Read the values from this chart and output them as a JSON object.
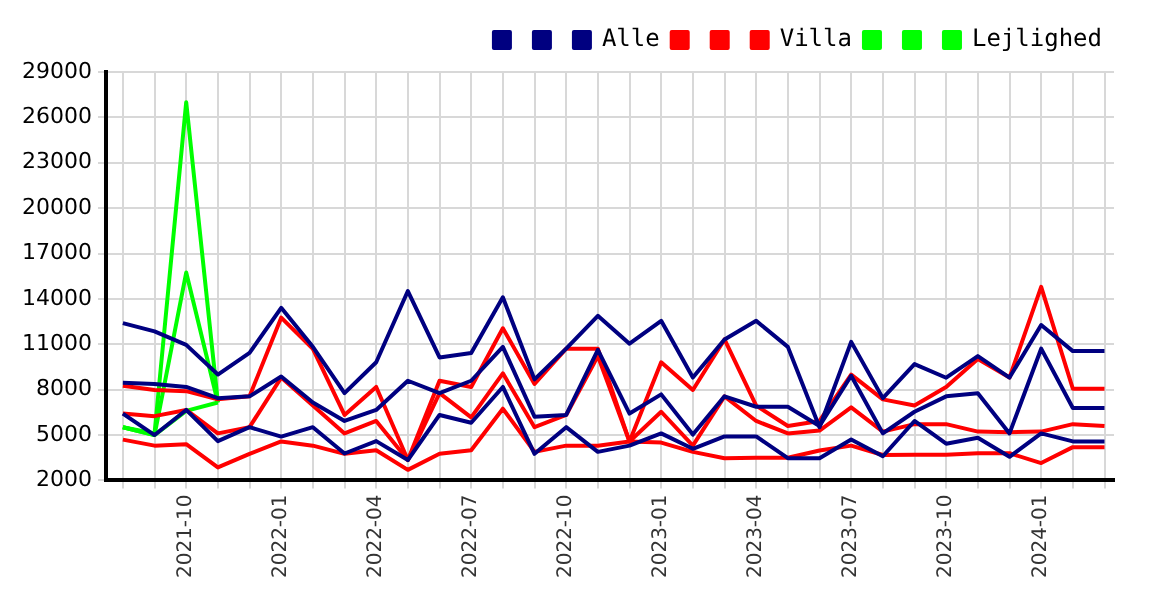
{
  "chart_data": {
    "type": "line",
    "x": [
      "2021-08",
      "2021-09",
      "2021-10",
      "2021-11",
      "2021-12",
      "2022-01",
      "2022-02",
      "2022-03",
      "2022-04",
      "2022-05",
      "2022-06",
      "2022-07",
      "2022-08",
      "2022-09",
      "2022-10",
      "2022-11",
      "2022-12",
      "2023-01",
      "2023-02",
      "2023-03",
      "2023-04",
      "2023-05",
      "2023-06",
      "2023-07",
      "2023-08",
      "2023-09",
      "2023-10",
      "2023-11",
      "2023-12",
      "2024-01",
      "2024-02",
      "2024-03"
    ],
    "series": [
      {
        "color": "#000080",
        "values": [
          6420,
          5000,
          6660,
          4600,
          5520,
          4900,
          5520,
          3780,
          4600,
          3350,
          6330,
          5810,
          8180,
          3760,
          5520,
          3890,
          4300,
          5110,
          4090,
          4910,
          4910,
          3470,
          3470,
          4700,
          3600,
          5930,
          4430,
          4820,
          3560,
          5110,
          4580,
          4580
        ]
      },
      {
        "color": "#000080",
        "values": [
          12400,
          11850,
          10960,
          9000,
          10430,
          13410,
          10830,
          7770,
          9810,
          14520,
          10130,
          10430,
          14110,
          8680,
          10710,
          12880,
          11040,
          12550,
          8800,
          11320,
          12550,
          10830,
          5520,
          11160,
          7440,
          9690,
          8790,
          10220,
          8800,
          12270,
          10550,
          10550
        ]
      },
      {
        "name": "Alle",
        "color": "#000080",
        "values": [
          8460,
          8380,
          8180,
          7440,
          7560,
          8870,
          7150,
          5930,
          6660,
          8590,
          7770,
          8590,
          10830,
          6210,
          6330,
          10630,
          6420,
          7690,
          5030,
          7560,
          6870,
          6870,
          5600,
          8920,
          5110,
          6540,
          7560,
          7770,
          5110,
          10710,
          6790,
          6790
        ]
      },
      {
        "color": "#ff0000",
        "values": [
          4700,
          4300,
          4400,
          2860,
          3760,
          4580,
          4300,
          3760,
          4000,
          2700,
          3760,
          4000,
          6740,
          3890,
          4300,
          4300,
          4570,
          4500,
          3890,
          3470,
          3500,
          3500,
          3980,
          4300,
          3680,
          3700,
          3700,
          3800,
          3800,
          3150,
          4200,
          4200
        ]
      },
      {
        "color": "#ff0000",
        "values": [
          8260,
          7980,
          7900,
          7360,
          7560,
          12760,
          10700,
          6330,
          8180,
          3350,
          8590,
          8180,
          12060,
          8380,
          10710,
          10710,
          4570,
          9810,
          7980,
          11320,
          6950,
          5600,
          5930,
          8990,
          7360,
          6950,
          8180,
          10020,
          8800,
          14800,
          8060,
          8060
        ]
      },
      {
        "name": "Villa",
        "color": "#ff0000",
        "values": [
          6420,
          6250,
          6660,
          5110,
          5520,
          8800,
          6950,
          5110,
          5930,
          3350,
          7770,
          6170,
          9080,
          5520,
          6330,
          10220,
          4570,
          6540,
          4300,
          7560,
          5930,
          5110,
          5300,
          6830,
          5230,
          5720,
          5720,
          5230,
          5190,
          5230,
          5720,
          5600
        ]
      },
      {
        "color": "#00ff00",
        "x": [
          "2021-08",
          "2021-09",
          "2021-10",
          "2021-11"
        ],
        "values": [
          5520,
          5000,
          6600,
          7150
        ]
      },
      {
        "color": "#00ff00",
        "x": [
          "2021-08",
          "2021-09",
          "2021-10",
          "2021-11"
        ],
        "values": [
          5520,
          5000,
          15740,
          7150
        ]
      },
      {
        "name": "Lejlighed",
        "color": "#00ff00",
        "x": [
          "2021-08",
          "2021-09",
          "2021-10",
          "2021-11"
        ],
        "values": [
          5520,
          5110,
          27000,
          7150
        ]
      }
    ],
    "xlim": [
      "2021-07-15",
      "2024-03-10"
    ],
    "xticks": [
      {
        "value": "2021-08",
        "label": null
      },
      {
        "value": "2021-09",
        "label": null
      },
      {
        "value": "2021-10",
        "label": "2021-10"
      },
      {
        "value": "2021-11",
        "label": null
      },
      {
        "value": "2021-12",
        "label": null
      },
      {
        "value": "2022-01",
        "label": "2022-01"
      },
      {
        "value": "2022-02",
        "label": null
      },
      {
        "value": "2022-03",
        "label": null
      },
      {
        "value": "2022-04",
        "label": "2022-04"
      },
      {
        "value": "2022-05",
        "label": null
      },
      {
        "value": "2022-06",
        "label": null
      },
      {
        "value": "2022-07",
        "label": "2022-07"
      },
      {
        "value": "2022-08",
        "label": null
      },
      {
        "value": "2022-09",
        "label": null
      },
      {
        "value": "2022-10",
        "label": "2022-10"
      },
      {
        "value": "2022-11",
        "label": null
      },
      {
        "value": "2022-12",
        "label": null
      },
      {
        "value": "2023-01",
        "label": "2023-01"
      },
      {
        "value": "2023-02",
        "label": null
      },
      {
        "value": "2023-03",
        "label": null
      },
      {
        "value": "2023-04",
        "label": "2023-04"
      },
      {
        "value": "2023-05",
        "label": null
      },
      {
        "value": "2023-06",
        "label": null
      },
      {
        "value": "2023-07",
        "label": "2023-07"
      },
      {
        "value": "2023-08",
        "label": null
      },
      {
        "value": "2023-09",
        "label": null
      },
      {
        "value": "2023-10",
        "label": "2023-10"
      },
      {
        "value": "2023-11",
        "label": null
      },
      {
        "value": "2023-12",
        "label": null
      },
      {
        "value": "2024-01",
        "label": "2024-01"
      },
      {
        "value": "2024-02",
        "label": null
      },
      {
        "value": "2024-03",
        "label": null
      }
    ],
    "ylim": [
      2000,
      29000
    ],
    "yticks": [
      2000,
      5000,
      8000,
      11000,
      14000,
      17000,
      20000,
      23000,
      26000,
      29000
    ],
    "grid": true,
    "legend": "top right",
    "marker": "none",
    "line_style": "solid"
  }
}
